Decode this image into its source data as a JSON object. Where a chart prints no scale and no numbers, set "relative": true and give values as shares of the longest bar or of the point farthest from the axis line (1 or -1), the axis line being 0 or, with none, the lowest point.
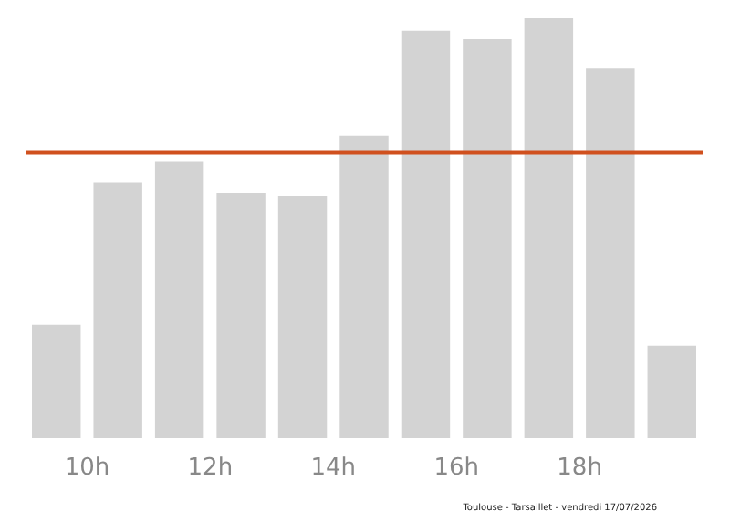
{
  "chart_data": {
    "type": "bar",
    "relative": true,
    "x": [
      9.5,
      10.5,
      11.5,
      12.5,
      13.5,
      14.5,
      15.5,
      16.5,
      17.5,
      18.5,
      19.5
    ],
    "values": [
      0.27,
      0.61,
      0.66,
      0.585,
      0.576,
      0.72,
      0.97,
      0.95,
      1,
      0.88,
      0.22
    ],
    "color": "#d3d3d3",
    "xlim": [
      9,
      20
    ],
    "xticks": [
      {
        "value": 10,
        "label": "10h"
      },
      {
        "value": 12,
        "label": "12h"
      },
      {
        "value": 14,
        "label": "14h"
      },
      {
        "value": 16,
        "label": "16h"
      },
      {
        "value": 18,
        "label": "18h"
      }
    ],
    "ref_lines": [
      {
        "axis": "y",
        "value": 0.68,
        "label": null,
        "color": "#d0501e"
      }
    ],
    "annotations": [
      "Toulouse - Tarsaillet - vendredi 17/07/2026"
    ],
    "grid": false
  }
}
